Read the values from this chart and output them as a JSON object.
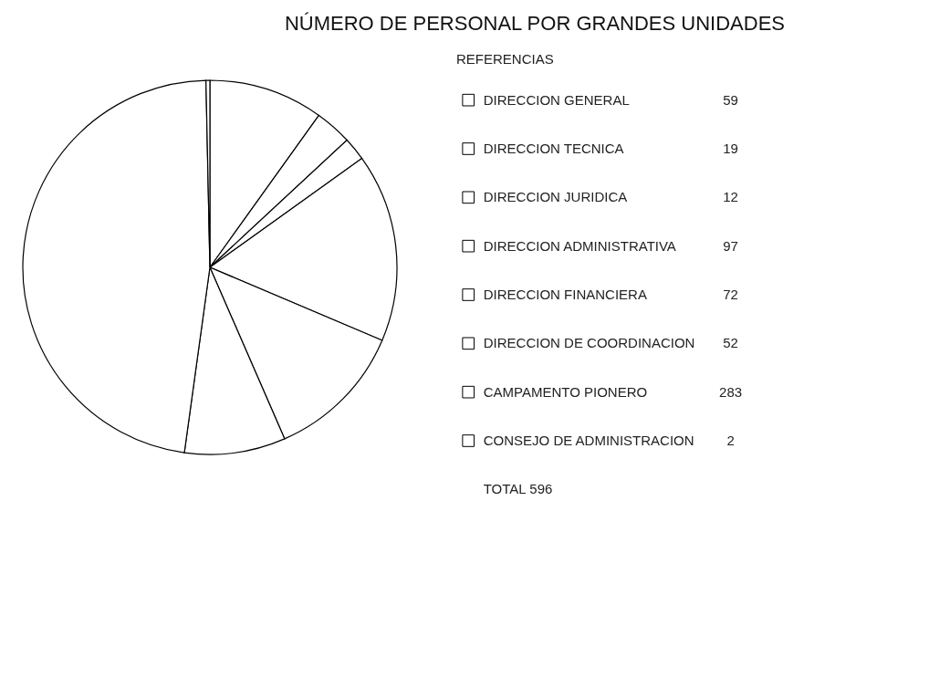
{
  "chart_data": {
    "type": "pie",
    "title": "NÚMERO DE PERSONAL POR GRANDES UNIDADES",
    "legend_title": "REFERENCIAS",
    "categories": [
      "DIRECCION GENERAL",
      "DIRECCION TECNICA",
      "DIRECCION JURIDICA",
      "DIRECCION ADMINISTRATIVA",
      "DIRECCION FINANCIERA",
      "DIRECCION DE COORDINACION",
      "CAMPAMENTO PIONERO",
      "CONSEJO DE ADMINISTRACION"
    ],
    "values": [
      59,
      19,
      12,
      97,
      72,
      52,
      283,
      2
    ],
    "colors": [
      "#ffffff",
      "#ffffff",
      "#ffffff",
      "#ffffff",
      "#ffffff",
      "#ffffff",
      "#ffffff",
      "#ffffff"
    ],
    "data_labels": true,
    "legend": "right",
    "annotations": [
      "TOTAL 596"
    ]
  }
}
